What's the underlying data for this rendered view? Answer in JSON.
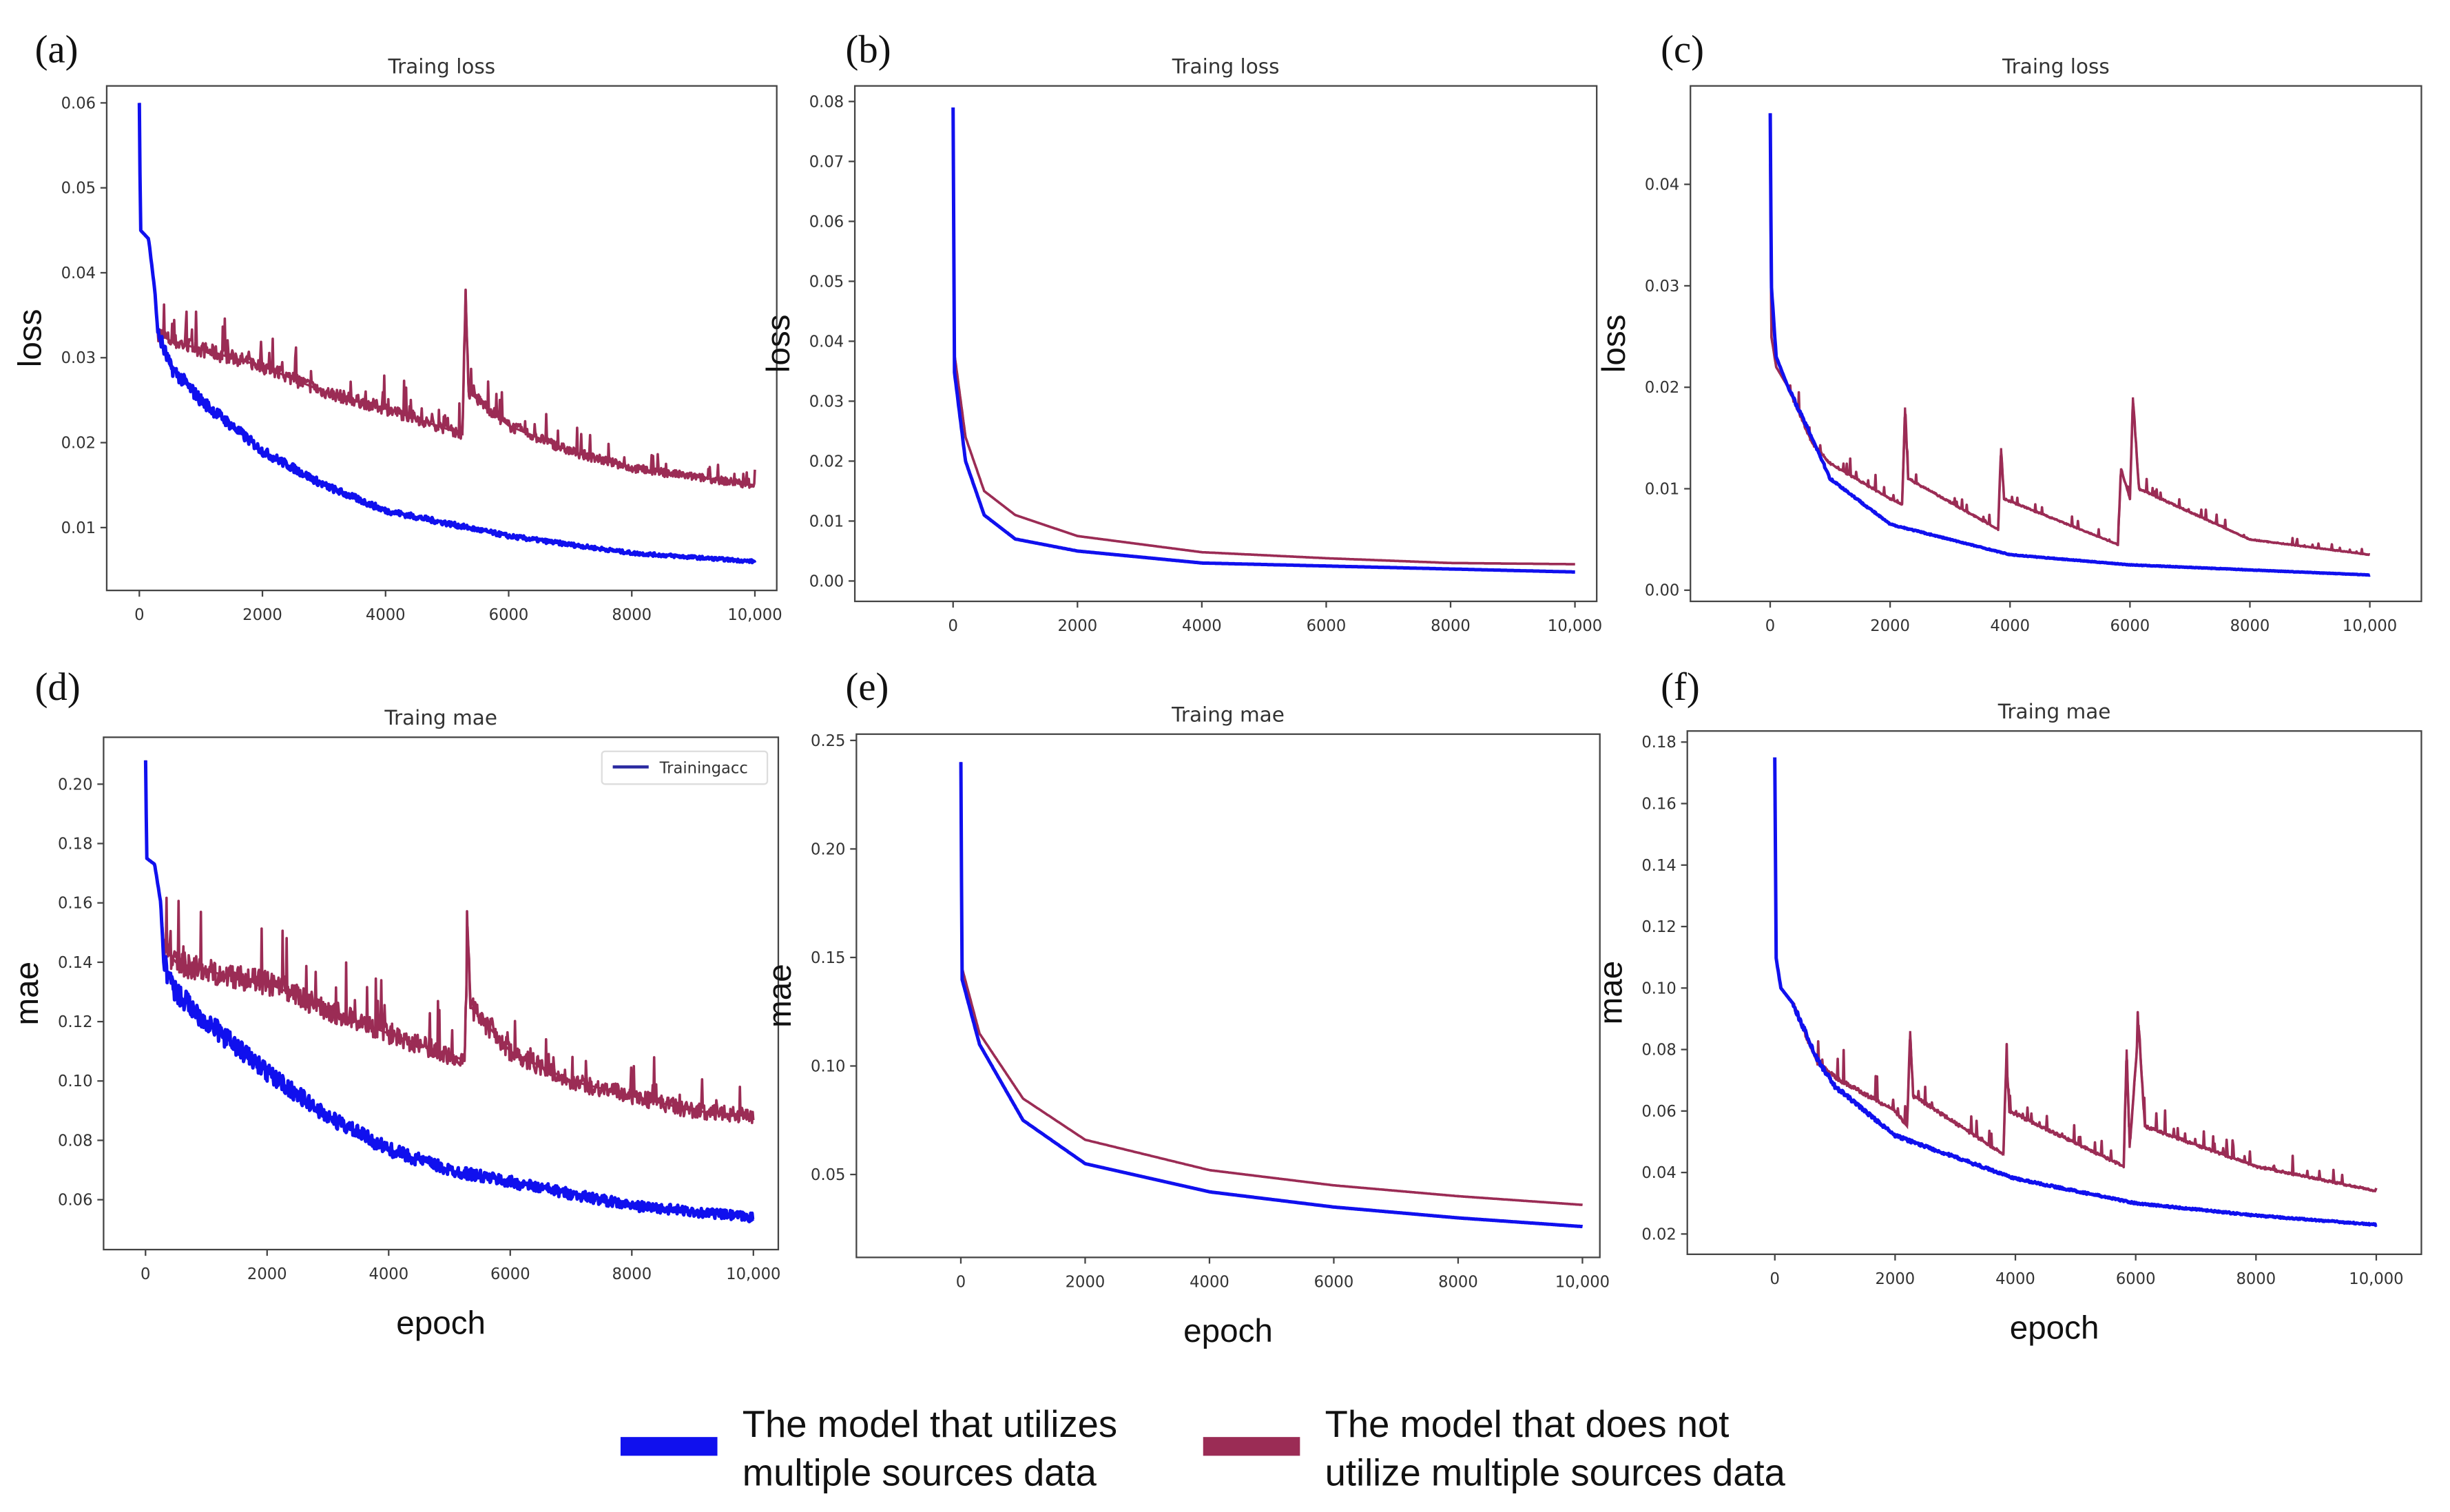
{
  "colors": {
    "multi": "#1010ee",
    "single": "#9b2c55"
  },
  "legend": {
    "multi_line1": "The model that utilizes",
    "multi_line2": "multiple sources data",
    "single_line1": "The model that does not",
    "single_line2": "utilize multiple sources data"
  },
  "chart_data": [
    {
      "type": "line",
      "panel": "(a)",
      "title": "Traing loss",
      "xlabel": "",
      "ylabel": "loss",
      "xlim": [
        -530,
        10355
      ],
      "ylim": [
        0.0026,
        0.062
      ],
      "xticks": [
        "0",
        "2000",
        "4000",
        "6000",
        "8000",
        "10,000"
      ],
      "xtick_values": [
        0,
        2000,
        4000,
        6000,
        8000,
        10000
      ],
      "yticks": [
        "0.01",
        "0.02",
        "0.03",
        "0.04",
        "0.05",
        "0.06"
      ],
      "ytick_values": [
        0.01,
        0.02,
        0.03,
        0.04,
        0.05,
        0.06
      ],
      "series": [
        {
          "name": "multi",
          "points": [
            [
              0,
              0.06
            ],
            [
              20,
              0.045
            ],
            [
              150,
              0.044
            ],
            [
              250,
              0.038
            ],
            [
              300,
              0.033
            ],
            [
              500,
              0.029
            ],
            [
              1000,
              0.025
            ],
            [
              2000,
              0.019
            ],
            [
              3000,
              0.015
            ],
            [
              4000,
              0.012
            ],
            [
              5000,
              0.0105
            ],
            [
              6000,
              0.009
            ],
            [
              7000,
              0.008
            ],
            [
              8000,
              0.007
            ],
            [
              9000,
              0.0065
            ],
            [
              10000,
              0.006
            ]
          ]
        },
        {
          "name": "single",
          "points": [
            [
              0,
              0.06
            ],
            [
              20,
              0.045
            ],
            [
              150,
              0.044
            ],
            [
              250,
              0.038
            ],
            [
              300,
              0.033
            ],
            [
              500,
              0.032
            ],
            [
              1000,
              0.031
            ],
            [
              2000,
              0.029
            ],
            [
              3000,
              0.026
            ],
            [
              4000,
              0.024
            ],
            [
              5250,
              0.021
            ],
            [
              5300,
              0.038
            ],
            [
              5350,
              0.026
            ],
            [
              6000,
              0.022
            ],
            [
              7000,
              0.019
            ],
            [
              8000,
              0.017
            ],
            [
              9000,
              0.016
            ],
            [
              10000,
              0.015
            ]
          ]
        }
      ]
    },
    {
      "type": "line",
      "panel": "(b)",
      "title": "Traing loss",
      "xlabel": "",
      "ylabel": "loss",
      "xlim": [
        -1580,
        10350
      ],
      "ylim": [
        -0.0034,
        0.0826
      ],
      "xticks": [
        "0",
        "2000",
        "4000",
        "6000",
        "8000",
        "10,000"
      ],
      "xtick_values": [
        0,
        2000,
        4000,
        6000,
        8000,
        10000
      ],
      "yticks": [
        "0.00",
        "0.01",
        "0.02",
        "0.03",
        "0.04",
        "0.05",
        "0.06",
        "0.07",
        "0.08"
      ],
      "ytick_values": [
        0,
        0.01,
        0.02,
        0.03,
        0.04,
        0.05,
        0.06,
        0.07,
        0.08
      ],
      "series": [
        {
          "name": "multi",
          "points": [
            [
              0,
              0.079
            ],
            [
              20,
              0.035
            ],
            [
              200,
              0.02
            ],
            [
              500,
              0.011
            ],
            [
              1000,
              0.007
            ],
            [
              2000,
              0.005
            ],
            [
              4000,
              0.003
            ],
            [
              6000,
              0.0025
            ],
            [
              8000,
              0.002
            ],
            [
              10000,
              0.0015
            ]
          ]
        },
        {
          "name": "single",
          "points": [
            [
              0,
              0.079
            ],
            [
              20,
              0.038
            ],
            [
              200,
              0.024
            ],
            [
              500,
              0.015
            ],
            [
              1000,
              0.011
            ],
            [
              2000,
              0.0075
            ],
            [
              4000,
              0.0048
            ],
            [
              6000,
              0.0038
            ],
            [
              8000,
              0.003
            ],
            [
              10000,
              0.0028
            ]
          ]
        }
      ]
    },
    {
      "type": "line",
      "panel": "(c)",
      "title": "Traing loss",
      "xlabel": "",
      "ylabel": "loss",
      "xlim": [
        -1330,
        10860
      ],
      "ylim": [
        -0.0011,
        0.0497
      ],
      "xticks": [
        "0",
        "2000",
        "4000",
        "6000",
        "8000",
        "10,000"
      ],
      "xtick_values": [
        0,
        2000,
        4000,
        6000,
        8000,
        10000
      ],
      "yticks": [
        "0.00",
        "0.01",
        "0.02",
        "0.03",
        "0.04"
      ],
      "ytick_values": [
        0,
        0.01,
        0.02,
        0.03,
        0.04
      ],
      "series": [
        {
          "name": "multi",
          "points": [
            [
              0,
              0.047
            ],
            [
              20,
              0.03
            ],
            [
              100,
              0.023
            ],
            [
              300,
              0.02
            ],
            [
              700,
              0.015
            ],
            [
              1000,
              0.011
            ],
            [
              2000,
              0.0065
            ],
            [
              4000,
              0.0035
            ],
            [
              6000,
              0.0025
            ],
            [
              8000,
              0.002
            ],
            [
              10000,
              0.0015
            ]
          ]
        },
        {
          "name": "single",
          "points": [
            [
              0,
              0.042
            ],
            [
              20,
              0.025
            ],
            [
              100,
              0.022
            ],
            [
              300,
              0.02
            ],
            [
              700,
              0.0145
            ],
            [
              1000,
              0.0125
            ],
            [
              2000,
              0.009
            ],
            [
              2200,
              0.0085
            ],
            [
              2250,
              0.018
            ],
            [
              2300,
              0.011
            ],
            [
              3800,
              0.006
            ],
            [
              3850,
              0.014
            ],
            [
              3900,
              0.009
            ],
            [
              5800,
              0.0045
            ],
            [
              5850,
              0.012
            ],
            [
              6000,
              0.009
            ],
            [
              6050,
              0.019
            ],
            [
              6150,
              0.01
            ],
            [
              8000,
              0.005
            ],
            [
              10000,
              0.0035
            ]
          ]
        }
      ]
    },
    {
      "type": "line",
      "panel": "(d)",
      "title": "Traing mae",
      "xlabel": "epoch",
      "ylabel": "mae",
      "xlim": [
        -690,
        10410
      ],
      "ylim": [
        0.0432,
        0.2158
      ],
      "xticks": [
        "0",
        "2000",
        "4000",
        "6000",
        "8000",
        "10,000"
      ],
      "xtick_values": [
        0,
        2000,
        4000,
        6000,
        8000,
        10000
      ],
      "yticks": [
        "0.06",
        "0.08",
        "0.10",
        "0.12",
        "0.14",
        "0.16",
        "0.18",
        "0.20"
      ],
      "ytick_values": [
        0.06,
        0.08,
        0.1,
        0.12,
        0.14,
        0.16,
        0.18,
        0.2
      ],
      "legend_label": "Trainingacc",
      "series": [
        {
          "name": "multi",
          "points": [
            [
              0,
              0.208
            ],
            [
              20,
              0.175
            ],
            [
              150,
              0.173
            ],
            [
              250,
              0.16
            ],
            [
              300,
              0.14
            ],
            [
              500,
              0.13
            ],
            [
              1000,
              0.12
            ],
            [
              2000,
              0.103
            ],
            [
              3000,
              0.088
            ],
            [
              4000,
              0.077
            ],
            [
              5000,
              0.07
            ],
            [
              6000,
              0.066
            ],
            [
              7000,
              0.062
            ],
            [
              8000,
              0.058
            ],
            [
              9000,
              0.056
            ],
            [
              10000,
              0.054
            ]
          ]
        },
        {
          "name": "single",
          "points": [
            [
              0,
              0.208
            ],
            [
              20,
              0.175
            ],
            [
              150,
              0.173
            ],
            [
              250,
              0.16
            ],
            [
              300,
              0.145
            ],
            [
              500,
              0.14
            ],
            [
              1000,
              0.137
            ],
            [
              2000,
              0.133
            ],
            [
              3000,
              0.124
            ],
            [
              4000,
              0.116
            ],
            [
              5250,
              0.107
            ],
            [
              5300,
              0.152
            ],
            [
              5350,
              0.125
            ],
            [
              6000,
              0.11
            ],
            [
              7000,
              0.1
            ],
            [
              8000,
              0.095
            ],
            [
              9000,
              0.09
            ],
            [
              10000,
              0.088
            ]
          ]
        }
      ]
    },
    {
      "type": "line",
      "panel": "(e)",
      "title": "Traing mae",
      "xlabel": "epoch",
      "ylabel": "mae",
      "xlim": [
        -1680,
        10280
      ],
      "ylim": [
        0.0118,
        0.2529
      ],
      "xticks": [
        "0",
        "2000",
        "4000",
        "6000",
        "8000",
        "10,000"
      ],
      "xtick_values": [
        0,
        2000,
        4000,
        6000,
        8000,
        10000
      ],
      "yticks": [
        "0.05",
        "0.10",
        "0.15",
        "0.20",
        "0.25"
      ],
      "ytick_values": [
        0.05,
        0.1,
        0.15,
        0.2,
        0.25
      ],
      "series": [
        {
          "name": "multi",
          "points": [
            [
              0,
              0.24
            ],
            [
              20,
              0.14
            ],
            [
              300,
              0.11
            ],
            [
              1000,
              0.075
            ],
            [
              2000,
              0.055
            ],
            [
              4000,
              0.042
            ],
            [
              6000,
              0.035
            ],
            [
              8000,
              0.03
            ],
            [
              10000,
              0.026
            ]
          ]
        },
        {
          "name": "single",
          "points": [
            [
              0,
              0.24
            ],
            [
              20,
              0.145
            ],
            [
              300,
              0.115
            ],
            [
              1000,
              0.085
            ],
            [
              2000,
              0.066
            ],
            [
              4000,
              0.052
            ],
            [
              6000,
              0.045
            ],
            [
              8000,
              0.04
            ],
            [
              10000,
              0.036
            ]
          ]
        }
      ]
    },
    {
      "type": "line",
      "panel": "(f)",
      "title": "Traing mae",
      "xlabel": "epoch",
      "ylabel": "mae",
      "xlim": [
        -1455,
        10750
      ],
      "ylim": [
        0.0134,
        0.1836
      ],
      "xticks": [
        "0",
        "2000",
        "4000",
        "6000",
        "8000",
        "10,000"
      ],
      "xtick_values": [
        0,
        2000,
        4000,
        6000,
        8000,
        10000
      ],
      "yticks": [
        "0.02",
        "0.04",
        "0.06",
        "0.08",
        "0.10",
        "0.12",
        "0.14",
        "0.16",
        "0.18"
      ],
      "ytick_values": [
        0.02,
        0.04,
        0.06,
        0.08,
        0.1,
        0.12,
        0.14,
        0.16,
        0.18
      ],
      "series": [
        {
          "name": "multi",
          "points": [
            [
              0,
              0.175
            ],
            [
              20,
              0.11
            ],
            [
              100,
              0.1
            ],
            [
              300,
              0.095
            ],
            [
              700,
              0.077
            ],
            [
              1000,
              0.068
            ],
            [
              2000,
              0.052
            ],
            [
              4000,
              0.038
            ],
            [
              6000,
              0.03
            ],
            [
              8000,
              0.026
            ],
            [
              10000,
              0.023
            ]
          ]
        },
        {
          "name": "single",
          "points": [
            [
              0,
              0.16
            ],
            [
              20,
              0.11
            ],
            [
              100,
              0.1
            ],
            [
              300,
              0.095
            ],
            [
              700,
              0.076
            ],
            [
              1000,
              0.071
            ],
            [
              2000,
              0.06
            ],
            [
              2200,
              0.055
            ],
            [
              2250,
              0.086
            ],
            [
              2300,
              0.065
            ],
            [
              3800,
              0.046
            ],
            [
              3850,
              0.077
            ],
            [
              3900,
              0.06
            ],
            [
              5800,
              0.042
            ],
            [
              5850,
              0.08
            ],
            [
              5900,
              0.048
            ],
            [
              6050,
              0.088
            ],
            [
              6150,
              0.055
            ],
            [
              8000,
              0.042
            ],
            [
              10000,
              0.034
            ]
          ]
        }
      ]
    }
  ]
}
